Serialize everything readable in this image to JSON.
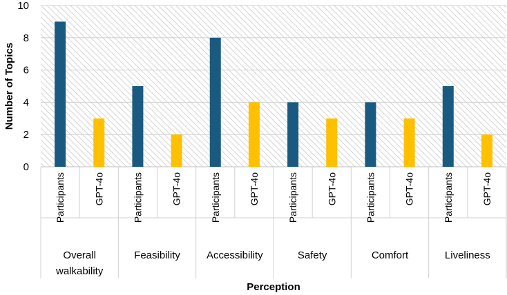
{
  "chart_data": {
    "type": "bar",
    "title": "",
    "xlabel": "Perception",
    "ylabel": "Number of Topics",
    "ylim": [
      0,
      10
    ],
    "yticks": [
      0,
      2,
      4,
      6,
      8,
      10
    ],
    "categories": [
      {
        "label_lines": [
          "Overall",
          "walkability"
        ]
      },
      {
        "label_lines": [
          "Feasibility"
        ]
      },
      {
        "label_lines": [
          "Accessibility"
        ]
      },
      {
        "label_lines": [
          "Safety"
        ]
      },
      {
        "label_lines": [
          "Comfort"
        ]
      },
      {
        "label_lines": [
          "Liveliness"
        ]
      }
    ],
    "series": [
      {
        "name": "Participants",
        "color": "#1a5a80",
        "values": [
          9,
          5,
          8,
          4,
          4,
          5
        ]
      },
      {
        "name": "GPT-4o",
        "color": "#ffc000",
        "values": [
          3,
          2,
          4,
          3,
          3,
          2
        ]
      }
    ],
    "grid": true
  }
}
